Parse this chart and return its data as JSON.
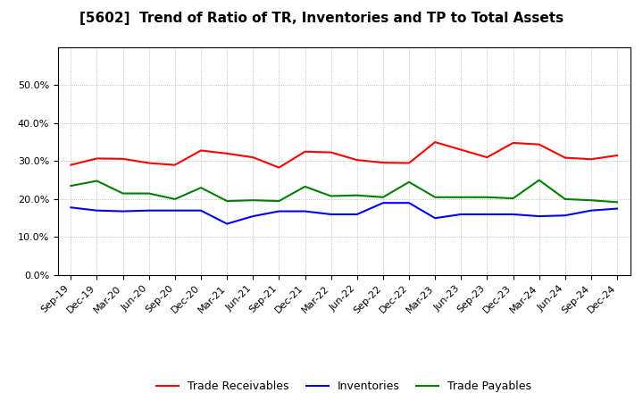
{
  "title": "[5602]  Trend of Ratio of TR, Inventories and TP to Total Assets",
  "x_labels": [
    "Sep-19",
    "Dec-19",
    "Mar-20",
    "Jun-20",
    "Sep-20",
    "Dec-20",
    "Mar-21",
    "Jun-21",
    "Sep-21",
    "Dec-21",
    "Mar-22",
    "Jun-22",
    "Sep-22",
    "Dec-22",
    "Mar-23",
    "Jun-23",
    "Sep-23",
    "Dec-23",
    "Mar-24",
    "Jun-24",
    "Sep-24",
    "Dec-24"
  ],
  "trade_receivables": [
    0.29,
    0.307,
    0.306,
    0.295,
    0.29,
    0.328,
    0.32,
    0.31,
    0.283,
    0.325,
    0.323,
    0.303,
    0.296,
    0.295,
    0.35,
    0.33,
    0.31,
    0.348,
    0.344,
    0.309,
    0.305,
    0.315
  ],
  "inventories": [
    0.178,
    0.17,
    0.168,
    0.17,
    0.17,
    0.17,
    0.135,
    0.155,
    0.168,
    0.168,
    0.16,
    0.16,
    0.19,
    0.19,
    0.15,
    0.16,
    0.16,
    0.16,
    0.155,
    0.157,
    0.17,
    0.175
  ],
  "trade_payables": [
    0.235,
    0.248,
    0.215,
    0.215,
    0.2,
    0.23,
    0.195,
    0.197,
    0.195,
    0.233,
    0.208,
    0.21,
    0.205,
    0.245,
    0.205,
    0.205,
    0.205,
    0.202,
    0.25,
    0.2,
    0.197,
    0.192
  ],
  "ylim": [
    0.0,
    0.6
  ],
  "yticks": [
    0.0,
    0.1,
    0.2,
    0.3,
    0.4,
    0.5
  ],
  "colors": {
    "trade_receivables": "#FF0000",
    "inventories": "#0000FF",
    "trade_payables": "#008000"
  },
  "legend": [
    "Trade Receivables",
    "Inventories",
    "Trade Payables"
  ],
  "background_color": "#FFFFFF",
  "plot_bg_color": "#FFFFFF",
  "title_fontsize": 11,
  "line_width": 1.5,
  "grid_color": "#AAAAAA",
  "tick_fontsize": 8
}
